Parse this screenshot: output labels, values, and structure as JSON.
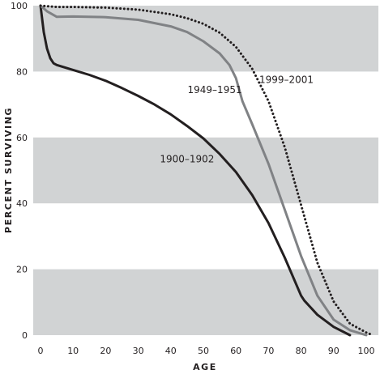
{
  "chart_data": {
    "type": "line",
    "title": "",
    "xlabel": "AGE",
    "ylabel": "PERCENT SURVIVING",
    "xlim": [
      0,
      102
    ],
    "ylim": [
      0,
      100
    ],
    "x_ticks": [
      "0",
      "10",
      "20",
      "30",
      "40",
      "50",
      "60",
      "70",
      "80",
      "90",
      "100"
    ],
    "y_ticks": [
      "0",
      "20",
      "40",
      "60",
      "80",
      "100"
    ],
    "grid": "alternating horizontal bands",
    "band_color": "#d1d3d4",
    "series": [
      {
        "name": "1900–1902",
        "style": "solid",
        "color": "#231f20",
        "x": [
          0,
          1,
          2,
          3,
          4,
          5,
          10,
          15,
          20,
          25,
          30,
          35,
          40,
          45,
          50,
          55,
          60,
          65,
          70,
          75,
          80,
          81,
          85,
          90,
          95
        ],
        "y": [
          100,
          92,
          87,
          84,
          82.5,
          82,
          80.5,
          79,
          77.2,
          75,
          72.6,
          70,
          67,
          63.5,
          59.7,
          55,
          49.5,
          42.5,
          34,
          23.5,
          12,
          10.5,
          6.2,
          2.5,
          0
        ]
      },
      {
        "name": "1949–1951",
        "style": "solid",
        "color": "#808285",
        "x": [
          0,
          2,
          5,
          10,
          20,
          30,
          40,
          45,
          50,
          55,
          58,
          60,
          62,
          65,
          70,
          75,
          80,
          85,
          90,
          95,
          100
        ],
        "y": [
          100,
          98.3,
          96.6,
          96.7,
          96.5,
          95.7,
          93.7,
          92,
          89.2,
          85.5,
          82,
          78,
          71,
          64,
          52,
          38,
          24,
          12,
          4.7,
          1.5,
          0
        ]
      },
      {
        "name": "1999–2001",
        "style": "dotted",
        "color": "#231f20",
        "x": [
          0,
          5,
          10,
          20,
          30,
          40,
          45,
          50,
          55,
          60,
          65,
          70,
          75,
          80,
          85,
          90,
          95,
          100,
          102
        ],
        "y": [
          100,
          99.6,
          99.6,
          99.4,
          98.8,
          97.4,
          96.2,
          94.5,
          91.8,
          87.5,
          80.8,
          71,
          57,
          39.5,
          22,
          10.2,
          3.5,
          0.8,
          0
        ]
      }
    ],
    "annotations": [
      {
        "text": "1900–1902",
        "x": 45,
        "y": 52.5
      },
      {
        "text": "1949–1951",
        "x": 53.5,
        "y": 73.5
      },
      {
        "text": "1999–2001",
        "x": 75.5,
        "y": 76.5
      }
    ]
  }
}
